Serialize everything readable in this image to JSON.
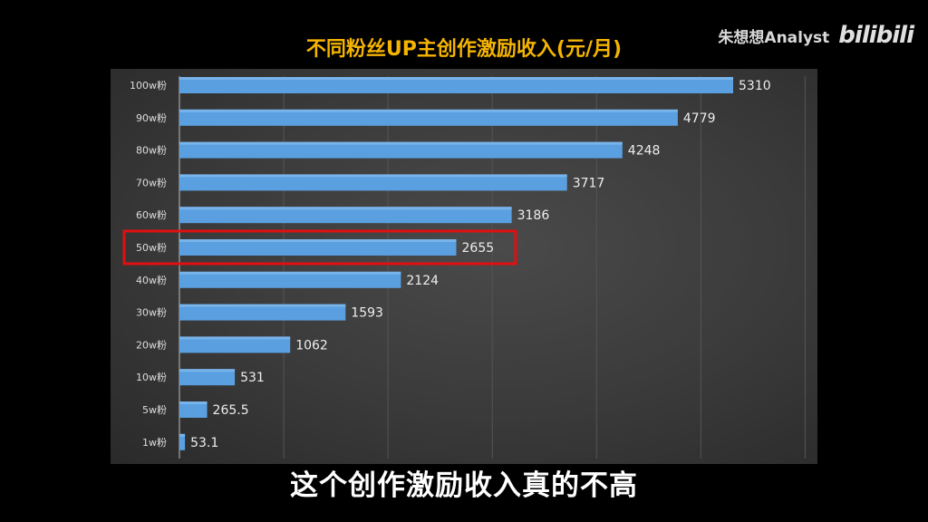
{
  "watermark": {
    "channel": "朱想想Analyst",
    "logo": "bilibili"
  },
  "subtitle": "这个创作激励收入真的不高",
  "chart_data": {
    "type": "bar",
    "orientation": "horizontal",
    "title": "不同粉丝UP主创作激励收入(元/月)",
    "categories": [
      "100w粉",
      "90w粉",
      "80w粉",
      "70w粉",
      "60w粉",
      "50w粉",
      "40w粉",
      "30w粉",
      "20w粉",
      "10w粉",
      "5w粉",
      "1w粉"
    ],
    "values": [
      5310,
      4779,
      4248,
      3717,
      3186,
      2655,
      2124,
      1593,
      1062,
      531,
      265.5,
      53.1
    ],
    "labels": [
      "5310",
      "4779",
      "4248",
      "3717",
      "3186",
      "2655",
      "2124",
      "1593",
      "1062",
      "531",
      "265.5",
      "53.1"
    ],
    "xlim": [
      0,
      6000
    ],
    "grid": true,
    "grid_step": 1000,
    "highlight": "50w粉",
    "bar_color": "#5aa0e0",
    "highlight_color": "#e01010",
    "title_color": "#f5b400"
  }
}
